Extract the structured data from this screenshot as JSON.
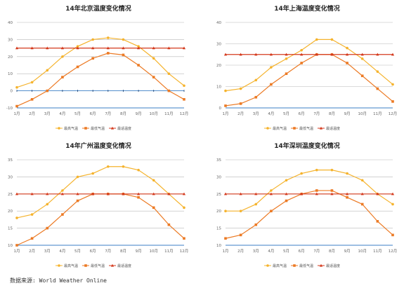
{
  "source_note": "数据来源: World Weather Online",
  "colors": {
    "high": "#f5b32d",
    "low": "#ec7a24",
    "ref": "#d43a1d",
    "grid": "#b8b8b8",
    "baseline": "#3b7fc4"
  },
  "chart_data": [
    {
      "type": "line",
      "title": "14年北京温度变化情况",
      "categories": [
        "1月",
        "2月",
        "3月",
        "4月",
        "5月",
        "6月",
        "7月",
        "8月",
        "9月",
        "10月",
        "11月",
        "12月"
      ],
      "ylim": [
        -10,
        40
      ],
      "yticks": [
        -10,
        0,
        10,
        20,
        30,
        40
      ],
      "yticklabels": [
        "-10",
        "0",
        "10",
        "20",
        "30",
        "40"
      ],
      "series": [
        {
          "name": "最高气温",
          "values": [
            2,
            5,
            12,
            20,
            26,
            30,
            31,
            30,
            26,
            19,
            10,
            3
          ]
        },
        {
          "name": "最低气温",
          "values": [
            -9,
            -5,
            0,
            8,
            14,
            19,
            22,
            21,
            15,
            8,
            0,
            -5
          ]
        },
        {
          "name": "最适温度",
          "values": [
            25,
            25,
            25,
            25,
            25,
            25,
            25,
            25,
            25,
            25,
            25,
            25
          ]
        }
      ]
    },
    {
      "type": "line",
      "title": "14年上海温度变化情况",
      "categories": [
        "1月",
        "2月",
        "3月",
        "4月",
        "5月",
        "6月",
        "7月",
        "8月",
        "9月",
        "10月",
        "11月",
        "12月"
      ],
      "ylim": [
        0,
        40
      ],
      "yticks": [
        0,
        10,
        20,
        30,
        40
      ],
      "yticklabels": [
        "0",
        "10",
        "20",
        "30",
        "40"
      ],
      "series": [
        {
          "name": "最高气温",
          "values": [
            8,
            9,
            13,
            19,
            23,
            27,
            32,
            32,
            28,
            23,
            17,
            11
          ]
        },
        {
          "name": "最低气温",
          "values": [
            1,
            2,
            5,
            11,
            16,
            21,
            25,
            25,
            21,
            15,
            9,
            3
          ]
        },
        {
          "name": "最适温度",
          "values": [
            25,
            25,
            25,
            25,
            25,
            25,
            25,
            25,
            25,
            25,
            25,
            25
          ]
        }
      ]
    },
    {
      "type": "line",
      "title": "14年广州温度变化情况",
      "categories": [
        "1月",
        "2月",
        "3月",
        "4月",
        "5月",
        "6月",
        "7月",
        "8月",
        "9月",
        "10月",
        "11月",
        "12月"
      ],
      "ylim": [
        10,
        35
      ],
      "yticks": [
        10,
        15,
        20,
        25,
        30,
        35
      ],
      "yticklabels": [
        "10",
        "15",
        "20",
        "25",
        "30",
        "35"
      ],
      "series": [
        {
          "name": "最高气温",
          "values": [
            18,
            19,
            22,
            26,
            30,
            31,
            33,
            33,
            32,
            29,
            25,
            21
          ]
        },
        {
          "name": "最低气温",
          "values": [
            10,
            12,
            15,
            19,
            23,
            25,
            25,
            25,
            24,
            21,
            16,
            12
          ]
        },
        {
          "name": "最适温度",
          "values": [
            25,
            25,
            25,
            25,
            25,
            25,
            25,
            25,
            25,
            25,
            25,
            25
          ]
        }
      ]
    },
    {
      "type": "line",
      "title": "14年深圳温度变化情况",
      "categories": [
        "1月",
        "2月",
        "3月",
        "4月",
        "5月",
        "6月",
        "7月",
        "8月",
        "9月",
        "10月",
        "11月",
        "12月"
      ],
      "ylim": [
        10,
        35
      ],
      "yticks": [
        10,
        15,
        20,
        25,
        30,
        35
      ],
      "yticklabels": [
        "10",
        "15",
        "20",
        "25",
        "30",
        "35"
      ],
      "series": [
        {
          "name": "最高气温",
          "values": [
            20,
            20,
            22,
            26,
            29,
            31,
            32,
            32,
            31,
            29,
            25,
            22
          ]
        },
        {
          "name": "最低气温",
          "values": [
            12,
            13,
            16,
            20,
            23,
            25,
            26,
            26,
            24,
            22,
            17,
            13
          ]
        },
        {
          "name": "最适温度",
          "values": [
            25,
            25,
            25,
            25,
            25,
            25,
            25,
            25,
            25,
            25,
            25,
            25
          ]
        }
      ]
    }
  ]
}
